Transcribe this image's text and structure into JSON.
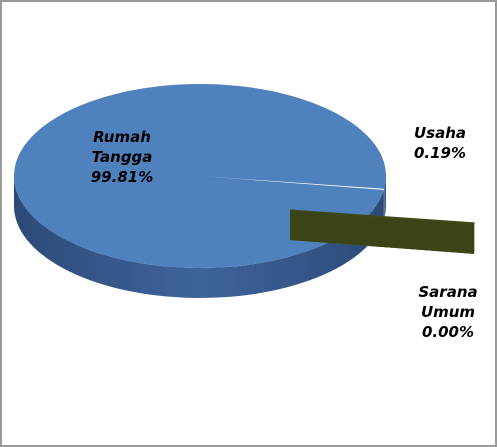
{
  "chart_data": {
    "type": "pie",
    "three_d": true,
    "categories": [
      "Rumah Tangga",
      "Usaha",
      "Sarana Umum"
    ],
    "values": [
      99.81,
      0.19,
      0.0
    ],
    "value_labels": [
      "99.81%",
      "0.19%",
      "0.00%"
    ],
    "colors": [
      "#4f81bd",
      "#4f5b1e",
      "#8a9a3a"
    ]
  }
}
